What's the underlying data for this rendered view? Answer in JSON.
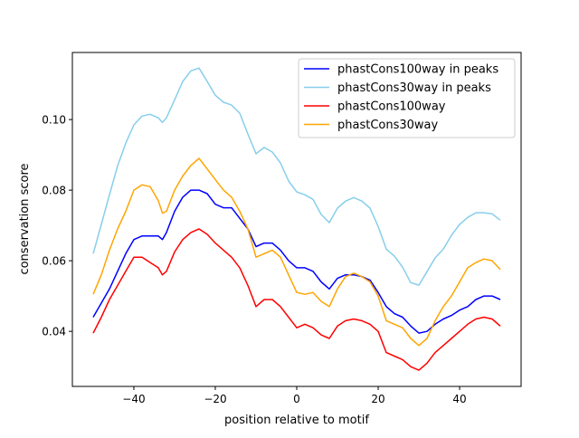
{
  "chart_data": {
    "type": "line",
    "title": "",
    "xlabel": "position relative to motif",
    "ylabel": "conservation score",
    "xlim": [
      -55.1,
      55.1
    ],
    "ylim": [
      0.0244,
      0.119
    ],
    "xticks": [
      -40,
      -20,
      0,
      20,
      40
    ],
    "xtick_labels": [
      "−40",
      "−20",
      "0",
      "20",
      "40"
    ],
    "yticks": [
      0.04,
      0.06,
      0.08,
      0.1
    ],
    "ytick_labels": [
      "0.04",
      "0.06",
      "0.08",
      "0.10"
    ],
    "grid": false,
    "legend_position": "top-right",
    "x": [
      -50,
      -48,
      -46,
      -44,
      -42,
      -40,
      -38,
      -36,
      -34,
      -33,
      -32,
      -30,
      -28,
      -26,
      -24,
      -22,
      -20,
      -18,
      -16,
      -14,
      -12,
      -10,
      -8,
      -6,
      -4,
      -2,
      0,
      2,
      4,
      6,
      8,
      10,
      12,
      14,
      16,
      18,
      20,
      22,
      24,
      26,
      28,
      30,
      32,
      34,
      36,
      38,
      40,
      42,
      44,
      46,
      48,
      50
    ],
    "series": [
      {
        "name": "phastCons100way in peaks",
        "color": "#0000ff",
        "values": [
          0.044,
          0.048,
          0.052,
          0.057,
          0.062,
          0.066,
          0.067,
          0.067,
          0.067,
          0.066,
          0.068,
          0.074,
          0.078,
          0.08,
          0.08,
          0.079,
          0.076,
          0.075,
          0.075,
          0.072,
          0.069,
          0.064,
          0.065,
          0.065,
          0.063,
          0.06,
          0.058,
          0.058,
          0.057,
          0.054,
          0.052,
          0.055,
          0.056,
          0.056,
          0.0555,
          0.0545,
          0.051,
          0.047,
          0.045,
          0.044,
          0.0415,
          0.0395,
          0.04,
          0.042,
          0.0435,
          0.0445,
          0.046,
          0.047,
          0.049,
          0.05,
          0.05,
          0.049
        ]
      },
      {
        "name": "phastCons30way in peaks",
        "color": "#87ceeb",
        "values": [
          0.062,
          0.0703,
          0.0787,
          0.0869,
          0.0933,
          0.0985,
          0.101,
          0.1015,
          0.1005,
          0.0992,
          0.1005,
          0.1056,
          0.1108,
          0.1138,
          0.1146,
          0.1108,
          0.1069,
          0.1049,
          0.1041,
          0.1018,
          0.0959,
          0.0903,
          0.0921,
          0.0908,
          0.0877,
          0.0826,
          0.0795,
          0.0787,
          0.0774,
          0.0731,
          0.0708,
          0.0749,
          0.0769,
          0.0779,
          0.0769,
          0.0749,
          0.0697,
          0.0633,
          0.0613,
          0.0582,
          0.0538,
          0.0531,
          0.0569,
          0.0608,
          0.0633,
          0.0672,
          0.0703,
          0.0723,
          0.0736,
          0.0736,
          0.0733,
          0.0715
        ]
      },
      {
        "name": "phastCons100way",
        "color": "#ff0000",
        "values": [
          0.0395,
          0.044,
          0.049,
          0.053,
          0.057,
          0.061,
          0.061,
          0.0595,
          0.058,
          0.056,
          0.057,
          0.0625,
          0.066,
          0.068,
          0.069,
          0.0675,
          0.065,
          0.063,
          0.061,
          0.058,
          0.053,
          0.047,
          0.049,
          0.049,
          0.047,
          0.044,
          0.041,
          0.042,
          0.041,
          0.039,
          0.038,
          0.0415,
          0.043,
          0.0435,
          0.043,
          0.042,
          0.04,
          0.034,
          0.033,
          0.032,
          0.03,
          0.029,
          0.031,
          0.034,
          0.036,
          0.038,
          0.04,
          0.042,
          0.0435,
          0.044,
          0.0435,
          0.0415
        ]
      },
      {
        "name": "phastCons30way",
        "color": "#ffa500",
        "values": [
          0.0505,
          0.056,
          0.063,
          0.069,
          0.074,
          0.08,
          0.0815,
          0.081,
          0.077,
          0.0735,
          0.074,
          0.08,
          0.084,
          0.087,
          0.089,
          0.086,
          0.083,
          0.08,
          0.078,
          0.074,
          0.069,
          0.061,
          0.062,
          0.063,
          0.061,
          0.056,
          0.051,
          0.0505,
          0.051,
          0.0485,
          0.047,
          0.052,
          0.0555,
          0.0565,
          0.0555,
          0.054,
          0.05,
          0.043,
          0.042,
          0.041,
          0.038,
          0.036,
          0.038,
          0.043,
          0.047,
          0.05,
          0.054,
          0.058,
          0.0595,
          0.0605,
          0.06,
          0.0575
        ]
      }
    ]
  }
}
